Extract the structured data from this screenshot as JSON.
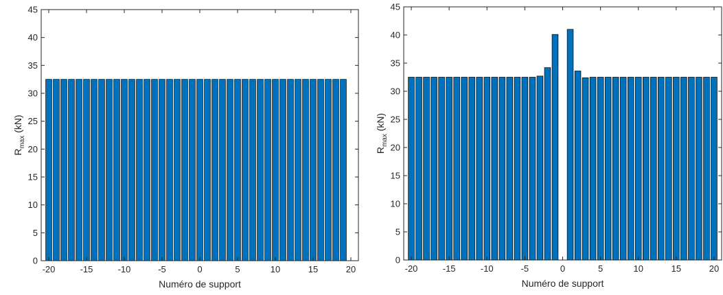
{
  "chart_data": [
    {
      "type": "bar",
      "xlabel": "Numéro de support",
      "ylabel": {
        "main": "R",
        "sub": "max",
        "unit": " (kN)"
      },
      "xlim": [
        -21,
        21
      ],
      "ylim": [
        0,
        45
      ],
      "xticks": [
        -20,
        -15,
        -10,
        -5,
        0,
        5,
        10,
        15,
        20
      ],
      "yticks": [
        0,
        5,
        10,
        15,
        20,
        25,
        30,
        35,
        40,
        45
      ],
      "bar_color": "#0072BD",
      "grid": false,
      "x": [
        -20,
        -19,
        -18,
        -17,
        -16,
        -15,
        -14,
        -13,
        -12,
        -11,
        -10,
        -9,
        -8,
        -7,
        -6,
        -5,
        -4,
        -3,
        -2,
        -1,
        0,
        1,
        2,
        3,
        4,
        5,
        6,
        7,
        8,
        9,
        10,
        11,
        12,
        13,
        14,
        15,
        16,
        17,
        18,
        19
      ],
      "values": [
        32.5,
        32.5,
        32.5,
        32.5,
        32.5,
        32.5,
        32.5,
        32.5,
        32.5,
        32.5,
        32.5,
        32.5,
        32.5,
        32.5,
        32.5,
        32.5,
        32.5,
        32.5,
        32.5,
        32.5,
        32.5,
        32.5,
        32.5,
        32.5,
        32.5,
        32.5,
        32.5,
        32.5,
        32.5,
        32.5,
        32.5,
        32.5,
        32.5,
        32.5,
        32.5,
        32.5,
        32.5,
        32.5,
        32.5,
        32.5
      ]
    },
    {
      "type": "bar",
      "xlabel": "Numéro de support",
      "ylabel": {
        "main": "R",
        "sub": "max",
        "unit": " (kN)"
      },
      "xlim": [
        -21,
        21
      ],
      "ylim": [
        0,
        45
      ],
      "xticks": [
        -20,
        -15,
        -10,
        -5,
        0,
        5,
        10,
        15,
        20
      ],
      "yticks": [
        0,
        5,
        10,
        15,
        20,
        25,
        30,
        35,
        40,
        45
      ],
      "bar_color": "#0072BD",
      "grid": false,
      "x": [
        -20,
        -19,
        -18,
        -17,
        -16,
        -15,
        -14,
        -13,
        -12,
        -11,
        -10,
        -9,
        -8,
        -7,
        -6,
        -5,
        -4,
        -3,
        -2,
        -1,
        1,
        2,
        3,
        4,
        5,
        6,
        7,
        8,
        9,
        10,
        11,
        12,
        13,
        14,
        15,
        16,
        17,
        18,
        19,
        20
      ],
      "values": [
        32.5,
        32.5,
        32.5,
        32.5,
        32.5,
        32.5,
        32.5,
        32.5,
        32.5,
        32.5,
        32.5,
        32.5,
        32.5,
        32.5,
        32.5,
        32.5,
        32.5,
        32.7,
        34.2,
        40.1,
        41.0,
        33.6,
        32.4,
        32.5,
        32.5,
        32.5,
        32.5,
        32.5,
        32.5,
        32.5,
        32.5,
        32.5,
        32.5,
        32.5,
        32.5,
        32.5,
        32.5,
        32.5,
        32.5,
        32.5
      ]
    }
  ]
}
